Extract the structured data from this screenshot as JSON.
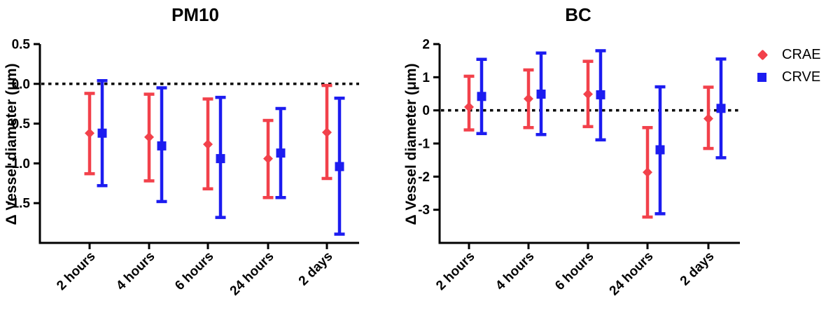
{
  "figure": {
    "background": "#ffffff",
    "axis_color": "#000000",
    "zero_line_color": "#000000"
  },
  "legend": {
    "items": [
      {
        "label": "CRAE",
        "marker": "diamond",
        "color": "#F2414B"
      },
      {
        "label": "CRVE",
        "marker": "square",
        "color": "#1C1CF0"
      }
    ]
  },
  "chart_data": [
    {
      "type": "errorbar",
      "title": "PM10",
      "ylabel": "Δ Vessel diameter (μm)",
      "xlabel": "",
      "grid": false,
      "zero_line_dashed": true,
      "categories": [
        "2 hours",
        "4 hours",
        "6 hours",
        "24 hours",
        "2 days"
      ],
      "ylim": [
        0.5,
        -2.0
      ],
      "yticks": [
        {
          "v": 0.5,
          "label": "0.5"
        },
        {
          "v": 0.0,
          "label": "0.0"
        },
        {
          "v": -0.5,
          "label": "-0.5"
        },
        {
          "v": -1.0,
          "label": "-1.0"
        },
        {
          "v": -1.5,
          "label": "-1.5"
        }
      ],
      "series": [
        {
          "name": "CRAE",
          "color": "#F2414B",
          "marker": "diamond",
          "means": [
            -0.62,
            -0.67,
            -0.76,
            -0.94,
            -0.61
          ],
          "ci_low": [
            -1.13,
            -1.22,
            -1.32,
            -1.43,
            -1.19
          ],
          "ci_high": [
            -0.12,
            -0.13,
            -0.19,
            -0.46,
            -0.02
          ]
        },
        {
          "name": "CRVE",
          "color": "#1C1CF0",
          "marker": "square",
          "means": [
            -0.62,
            -0.78,
            -0.94,
            -0.87,
            -1.04
          ],
          "ci_low": [
            -1.28,
            -1.48,
            -1.68,
            -1.43,
            -1.89
          ],
          "ci_high": [
            0.04,
            -0.05,
            -0.17,
            -0.31,
            -0.18
          ]
        }
      ]
    },
    {
      "type": "errorbar",
      "title": "BC",
      "ylabel": "Δ Vessel diameter (μm)",
      "xlabel": "",
      "grid": false,
      "zero_line_dashed": true,
      "categories": [
        "2 hours",
        "4 hours",
        "6 hours",
        "24 hours",
        "2 days"
      ],
      "ylim": [
        2,
        -4
      ],
      "yticks": [
        {
          "v": 2,
          "label": "2"
        },
        {
          "v": 1,
          "label": "1"
        },
        {
          "v": 0,
          "label": "0"
        },
        {
          "v": -1,
          "label": "-1"
        },
        {
          "v": -2,
          "label": "-2"
        },
        {
          "v": -3,
          "label": "-3"
        }
      ],
      "series": [
        {
          "name": "CRAE",
          "color": "#F2414B",
          "marker": "diamond",
          "means": [
            0.1,
            0.35,
            0.49,
            -1.87,
            -0.25
          ],
          "ci_low": [
            -0.59,
            -0.52,
            -0.49,
            -3.22,
            -1.15
          ],
          "ci_high": [
            1.03,
            1.22,
            1.48,
            -0.52,
            0.7
          ]
        },
        {
          "name": "CRVE",
          "color": "#1C1CF0",
          "marker": "square",
          "means": [
            0.42,
            0.49,
            0.47,
            -1.19,
            0.06
          ],
          "ci_low": [
            -0.7,
            -0.73,
            -0.89,
            -3.12,
            -1.43
          ],
          "ci_high": [
            1.54,
            1.73,
            1.8,
            0.71,
            1.55
          ]
        }
      ]
    }
  ]
}
